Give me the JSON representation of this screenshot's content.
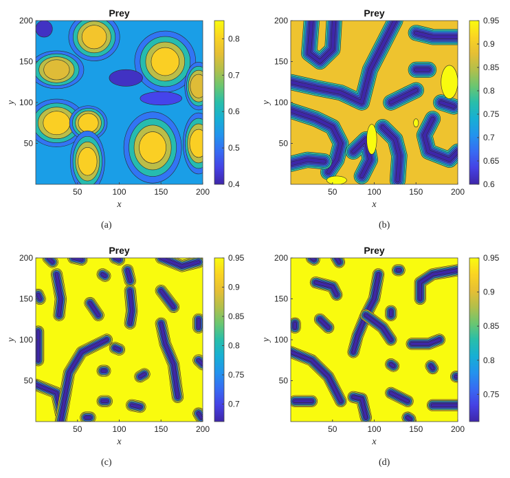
{
  "figure": {
    "panels": [
      {
        "id": "a",
        "caption": "(a)"
      },
      {
        "id": "b",
        "caption": "(b)"
      },
      {
        "id": "c",
        "caption": "(c)"
      },
      {
        "id": "d",
        "caption": "(d)"
      }
    ]
  },
  "chart_data": [
    {
      "type": "heatmap",
      "title": "Prey",
      "xlabel": "x",
      "ylabel": "y",
      "xlim": [
        0,
        200
      ],
      "ylim": [
        0,
        200
      ],
      "xticks": [
        50,
        100,
        150,
        200
      ],
      "yticks": [
        50,
        100,
        150,
        200
      ],
      "colorbar": {
        "min": 0.4,
        "max": 0.85,
        "ticks": [
          0.4,
          0.5,
          0.6,
          0.7,
          0.8
        ]
      },
      "colormap": "parula",
      "background_value": 0.55,
      "blobs": [
        {
          "x": 25,
          "y": 75,
          "rx": 28,
          "ry": 22,
          "value": 0.8
        },
        {
          "x": 63,
          "y": 75,
          "rx": 16,
          "ry": 14,
          "value": 0.82
        },
        {
          "x": 62,
          "y": 28,
          "rx": 14,
          "ry": 30,
          "value": 0.8
        },
        {
          "x": 140,
          "y": 45,
          "rx": 28,
          "ry": 36,
          "value": 0.82
        },
        {
          "x": 195,
          "y": 50,
          "rx": 12,
          "ry": 30,
          "value": 0.8
        },
        {
          "x": 70,
          "y": 180,
          "rx": 24,
          "ry": 22,
          "value": 0.78
        },
        {
          "x": 25,
          "y": 140,
          "rx": 26,
          "ry": 16,
          "value": 0.75
        },
        {
          "x": 155,
          "y": 150,
          "rx": 30,
          "ry": 30,
          "value": 0.8
        },
        {
          "x": 195,
          "y": 120,
          "rx": 10,
          "ry": 22,
          "value": 0.75
        }
      ],
      "dips": [
        {
          "x": 108,
          "y": 130,
          "rx": 20,
          "ry": 10,
          "value": 0.42
        },
        {
          "x": 10,
          "y": 190,
          "rx": 10,
          "ry": 10,
          "value": 0.42
        },
        {
          "x": 150,
          "y": 105,
          "rx": 25,
          "ry": 8,
          "value": 0.45
        }
      ]
    },
    {
      "type": "heatmap",
      "title": "Prey",
      "xlabel": "x",
      "ylabel": "y",
      "xlim": [
        0,
        200
      ],
      "ylim": [
        0,
        200
      ],
      "xticks": [
        50,
        100,
        150,
        200
      ],
      "yticks": [
        50,
        100,
        150,
        200
      ],
      "colorbar": {
        "min": 0.6,
        "max": 0.95,
        "ticks": [
          0.6,
          0.65,
          0.7,
          0.75,
          0.8,
          0.85,
          0.9,
          0.95
        ]
      },
      "colormap": "parula",
      "background_value": 0.89,
      "stripes": [
        [
          [
            25,
            200
          ],
          [
            22,
            160
          ],
          [
            35,
            150
          ],
          [
            50,
            165
          ],
          [
            52,
            200
          ]
        ],
        [
          [
            0,
            125
          ],
          [
            30,
            118
          ],
          [
            60,
            112
          ],
          [
            85,
            100
          ],
          [
            95,
            140
          ],
          [
            110,
            170
          ],
          [
            125,
            200
          ]
        ],
        [
          [
            0,
            90
          ],
          [
            30,
            80
          ],
          [
            50,
            70
          ],
          [
            60,
            50
          ],
          [
            55,
            30
          ],
          [
            45,
            15
          ]
        ],
        [
          [
            0,
            25
          ],
          [
            20,
            30
          ],
          [
            40,
            28
          ]
        ],
        [
          [
            75,
            40
          ],
          [
            90,
            55
          ],
          [
            95,
            30
          ],
          [
            85,
            10
          ]
        ],
        [
          [
            110,
            70
          ],
          [
            125,
            55
          ],
          [
            130,
            35
          ],
          [
            128,
            5
          ]
        ],
        [
          [
            120,
            100
          ],
          [
            140,
            110
          ],
          [
            150,
            115
          ]
        ],
        [
          [
            170,
            80
          ],
          [
            160,
            60
          ],
          [
            165,
            40
          ],
          [
            190,
            30
          ],
          [
            200,
            40
          ]
        ],
        [
          [
            165,
            140
          ],
          [
            150,
            140
          ]
        ],
        [
          [
            150,
            185
          ],
          [
            170,
            180
          ],
          [
            200,
            180
          ]
        ],
        [
          [
            180,
            100
          ],
          [
            195,
            95
          ]
        ]
      ],
      "highs": [
        {
          "x": 97,
          "y": 55,
          "rx": 6,
          "ry": 18,
          "value": 0.95
        },
        {
          "x": 150,
          "y": 75,
          "rx": 3,
          "ry": 5,
          "value": 0.95
        },
        {
          "x": 190,
          "y": 125,
          "rx": 10,
          "ry": 20,
          "value": 0.95
        },
        {
          "x": 55,
          "y": 5,
          "rx": 12,
          "ry": 5,
          "value": 0.95
        }
      ]
    },
    {
      "type": "heatmap",
      "title": "Prey",
      "xlabel": "x",
      "ylabel": "y",
      "xlim": [
        0,
        200
      ],
      "ylim": [
        0,
        200
      ],
      "xticks": [
        50,
        100,
        150,
        200
      ],
      "yticks": [
        50,
        100,
        150,
        200
      ],
      "colorbar": {
        "min": 0.67,
        "max": 0.95,
        "ticks": [
          0.7,
          0.75,
          0.8,
          0.85,
          0.9,
          0.95
        ]
      },
      "colormap": "parula",
      "background_value": 0.95,
      "stripes": [
        [
          [
            15,
            200
          ],
          [
            20,
            195
          ]
        ],
        [
          [
            45,
            200
          ],
          [
            55,
            198
          ]
        ],
        [
          [
            95,
            200
          ],
          [
            100,
            198
          ]
        ],
        [
          [
            150,
            200
          ],
          [
            175,
            190
          ],
          [
            195,
            195
          ]
        ],
        [
          [
            25,
            180
          ],
          [
            30,
            150
          ],
          [
            28,
            130
          ]
        ],
        [
          [
            3,
            155
          ],
          [
            5,
            150
          ]
        ],
        [
          [
            80,
            180
          ],
          [
            83,
            178
          ]
        ],
        [
          [
            110,
            185
          ],
          [
            113,
            172
          ]
        ],
        [
          [
            65,
            145
          ],
          [
            75,
            130
          ]
        ],
        [
          [
            113,
            160
          ],
          [
            115,
            135
          ],
          [
            113,
            120
          ]
        ],
        [
          [
            150,
            160
          ],
          [
            165,
            140
          ]
        ],
        [
          [
            195,
            125
          ],
          [
            195,
            115
          ]
        ],
        [
          [
            3,
            110
          ],
          [
            3,
            75
          ]
        ],
        [
          [
            0,
            45
          ],
          [
            25,
            35
          ],
          [
            30,
            10
          ]
        ],
        [
          [
            30,
            0
          ],
          [
            40,
            60
          ],
          [
            55,
            85
          ],
          [
            75,
            95
          ],
          [
            85,
            100
          ]
        ],
        [
          [
            150,
            120
          ],
          [
            155,
            95
          ],
          [
            165,
            70
          ],
          [
            168,
            45
          ],
          [
            170,
            30
          ]
        ],
        [
          [
            80,
            62
          ],
          [
            83,
            62
          ]
        ],
        [
          [
            95,
            90
          ],
          [
            100,
            88
          ]
        ],
        [
          [
            125,
            55
          ],
          [
            130,
            58
          ]
        ],
        [
          [
            80,
            25
          ],
          [
            85,
            25
          ]
        ],
        [
          [
            115,
            20
          ],
          [
            125,
            18
          ]
        ],
        [
          [
            195,
            10
          ],
          [
            198,
            5
          ]
        ],
        [
          [
            60,
            5
          ],
          [
            65,
            5
          ]
        ],
        [
          [
            195,
            75
          ],
          [
            200,
            70
          ]
        ]
      ],
      "highs": []
    },
    {
      "type": "heatmap",
      "title": "Prey",
      "xlabel": "x",
      "ylabel": "y",
      "xlim": [
        0,
        200
      ],
      "ylim": [
        0,
        200
      ],
      "xticks": [
        50,
        100,
        150,
        200
      ],
      "yticks": [
        50,
        100,
        150,
        200
      ],
      "colorbar": {
        "min": 0.71,
        "max": 0.95,
        "ticks": [
          0.75,
          0.8,
          0.85,
          0.9,
          0.95
        ]
      },
      "colormap": "parula",
      "background_value": 0.95,
      "stripes": [
        [
          [
            25,
            200
          ],
          [
            28,
            198
          ]
        ],
        [
          [
            55,
            200
          ],
          [
            58,
            195
          ]
        ],
        [
          [
            30,
            170
          ],
          [
            50,
            165
          ],
          [
            55,
            155
          ]
        ],
        [
          [
            5,
            120
          ],
          [
            5,
            115
          ]
        ],
        [
          [
            35,
            125
          ],
          [
            45,
            115
          ]
        ],
        [
          [
            0,
            85
          ],
          [
            25,
            75
          ],
          [
            45,
            55
          ],
          [
            55,
            35
          ],
          [
            60,
            25
          ]
        ],
        [
          [
            5,
            25
          ],
          [
            25,
            25
          ]
        ],
        [
          [
            75,
            30
          ],
          [
            85,
            28
          ],
          [
            90,
            5
          ]
        ],
        [
          [
            105,
            180
          ],
          [
            100,
            150
          ],
          [
            90,
            130
          ],
          [
            80,
            105
          ],
          [
            75,
            85
          ]
        ],
        [
          [
            90,
            130
          ],
          [
            110,
            115
          ],
          [
            120,
            100
          ]
        ],
        [
          [
            128,
            185
          ],
          [
            130,
            185
          ]
        ],
        [
          [
            120,
            135
          ],
          [
            120,
            130
          ]
        ],
        [
          [
            120,
            70
          ],
          [
            123,
            68
          ]
        ],
        [
          [
            120,
            35
          ],
          [
            140,
            25
          ]
        ],
        [
          [
            140,
            5
          ],
          [
            143,
            3
          ]
        ],
        [
          [
            145,
            95
          ],
          [
            165,
            95
          ],
          [
            178,
            100
          ]
        ],
        [
          [
            155,
            150
          ],
          [
            155,
            170
          ],
          [
            170,
            180
          ],
          [
            200,
            185
          ]
        ],
        [
          [
            168,
            68
          ],
          [
            170,
            65
          ]
        ],
        [
          [
            170,
            20
          ],
          [
            200,
            20
          ]
        ],
        [
          [
            200,
            55
          ],
          [
            198,
            55
          ]
        ]
      ],
      "highs": []
    }
  ]
}
